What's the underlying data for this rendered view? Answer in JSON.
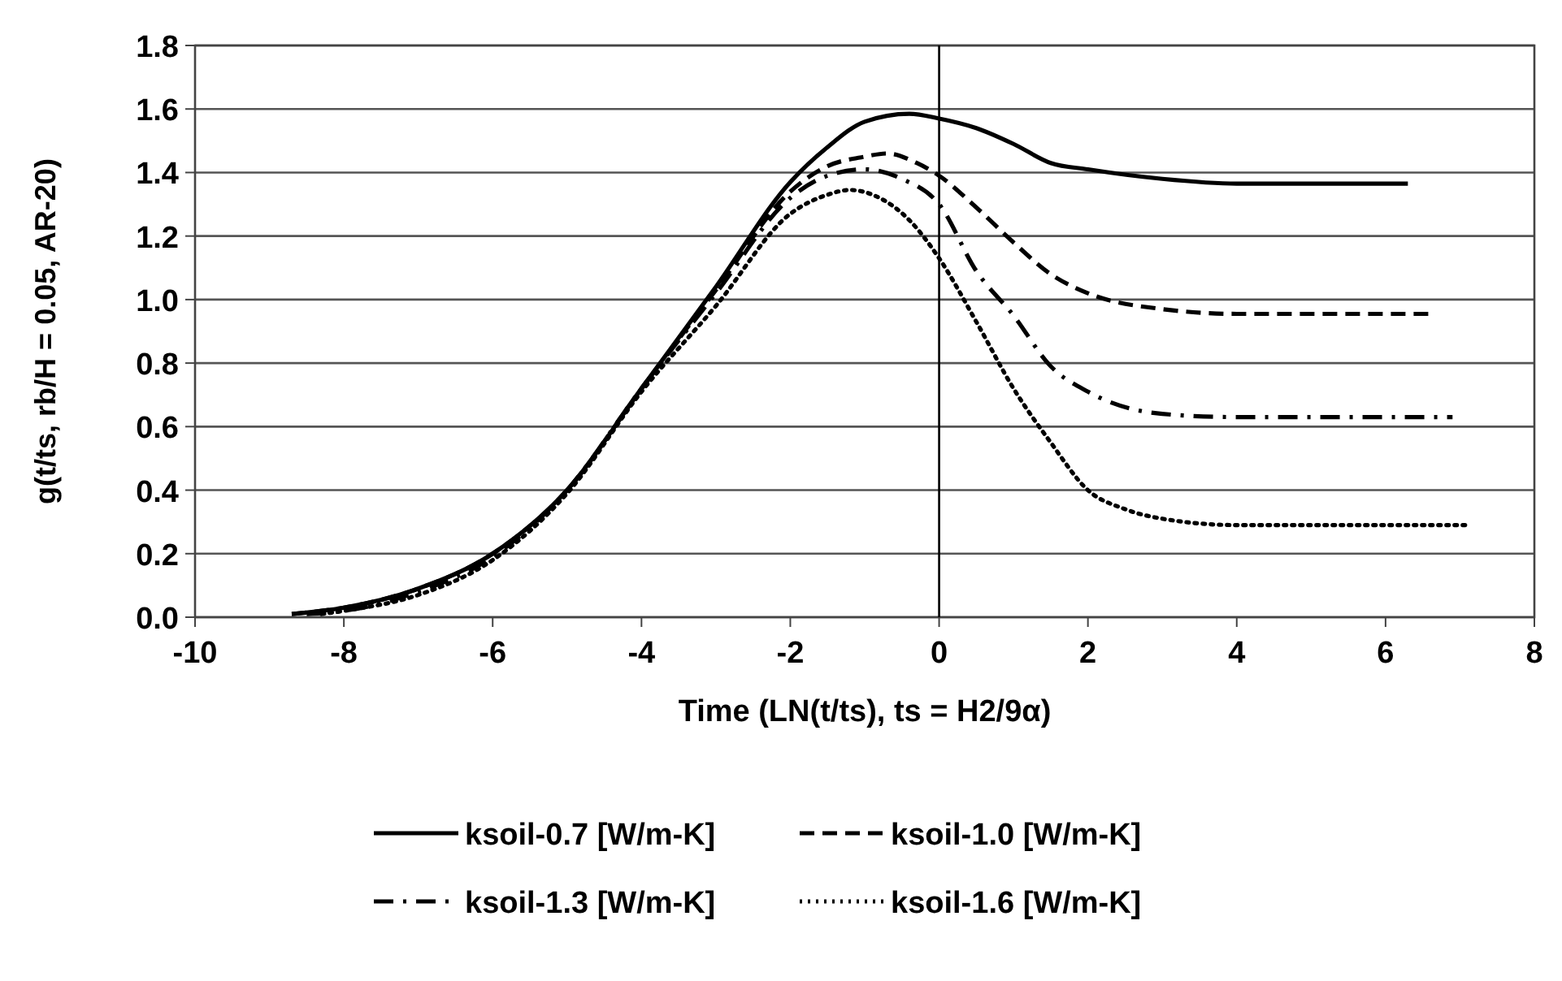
{
  "chart_data": {
    "type": "line",
    "xlabel": "Time (LN(t/ts), ts = H2/9α)",
    "ylabel": "g(t/ts, rb/H = 0.05, AR-20)",
    "xlim": [
      -10,
      8
    ],
    "ylim": [
      0,
      1.8
    ],
    "xticks": [
      -10,
      -8,
      -6,
      -4,
      -2,
      0,
      2,
      4,
      6,
      8
    ],
    "yticks": [
      {
        "value": 0,
        "label": "0.0"
      },
      {
        "value": 0.2,
        "label": "0.2"
      },
      {
        "value": 0.4,
        "label": "0.4"
      },
      {
        "value": 0.6,
        "label": "0.6"
      },
      {
        "value": 0.8,
        "label": "0.8"
      },
      {
        "value": 1,
        "label": "1.0"
      },
      {
        "value": 1.2,
        "label": "1.2"
      },
      {
        "value": 1.4,
        "label": "1.4"
      },
      {
        "value": 1.6,
        "label": "1.6"
      },
      {
        "value": 1.8,
        "label": "1.8"
      }
    ],
    "grid": "y",
    "legend": "bottom",
    "marker": "none",
    "ref_lines": [
      {
        "axis": "x",
        "value": 0,
        "color": "#000000"
      }
    ],
    "series": [
      {
        "name": "ksoil-0.7 [W/m-K]",
        "color": "#000000",
        "line_style": "solid",
        "x": [
          -8.7,
          -8,
          -7,
          -6,
          -5,
          -4,
          -3,
          -2,
          -1.5,
          -1,
          -0.4,
          0,
          0.5,
          1,
          1.5,
          2,
          3,
          4,
          5,
          6.3
        ],
        "values": [
          0.01,
          0.03,
          0.09,
          0.2,
          0.4,
          0.72,
          1.04,
          1.37,
          1.48,
          1.56,
          1.585,
          1.57,
          1.54,
          1.49,
          1.43,
          1.41,
          1.38,
          1.365,
          1.365,
          1.365
        ]
      },
      {
        "name": "ksoil-1.0 [W/m-K]",
        "color": "#000000",
        "line_style": "dashed",
        "x": [
          -8.7,
          -8,
          -7,
          -6,
          -5,
          -4,
          -3,
          -2,
          -1.5,
          -1,
          -0.7,
          -0.3,
          0,
          0.5,
          1,
          1.5,
          2,
          3,
          4,
          5,
          6.6
        ],
        "values": [
          0.01,
          0.03,
          0.09,
          0.2,
          0.4,
          0.72,
          1.03,
          1.34,
          1.42,
          1.45,
          1.46,
          1.43,
          1.39,
          1.29,
          1.18,
          1.08,
          1.02,
          0.97,
          0.955,
          0.955,
          0.955
        ]
      },
      {
        "name": "ksoil-1.3 [W/m-K]",
        "color": "#000000",
        "line_style": "dashdot",
        "x": [
          -8.5,
          -8,
          -7,
          -6,
          -5,
          -4,
          -3,
          -2,
          -1.5,
          -1,
          -0.5,
          0,
          0.5,
          1,
          1.5,
          2,
          3,
          4,
          5,
          6.9
        ],
        "values": [
          0.01,
          0.02,
          0.08,
          0.19,
          0.4,
          0.72,
          1.02,
          1.32,
          1.39,
          1.41,
          1.38,
          1.3,
          1.09,
          0.95,
          0.79,
          0.71,
          0.64,
          0.63,
          0.63,
          0.63
        ]
      },
      {
        "name": "ksoil-1.6 [W/m-K]",
        "color": "#000000",
        "line_style": "dotted",
        "x": [
          -8.3,
          -8,
          -7,
          -6,
          -5,
          -4,
          -3,
          -2,
          -1.5,
          -1.2,
          -0.8,
          -0.4,
          0,
          0.5,
          1,
          1.5,
          2,
          2.5,
          3,
          4,
          5,
          7.1
        ],
        "values": [
          0.01,
          0.02,
          0.07,
          0.18,
          0.39,
          0.71,
          0.98,
          1.27,
          1.33,
          1.345,
          1.32,
          1.25,
          1.13,
          0.93,
          0.72,
          0.55,
          0.4,
          0.34,
          0.31,
          0.29,
          0.29,
          0.29
        ]
      }
    ]
  }
}
